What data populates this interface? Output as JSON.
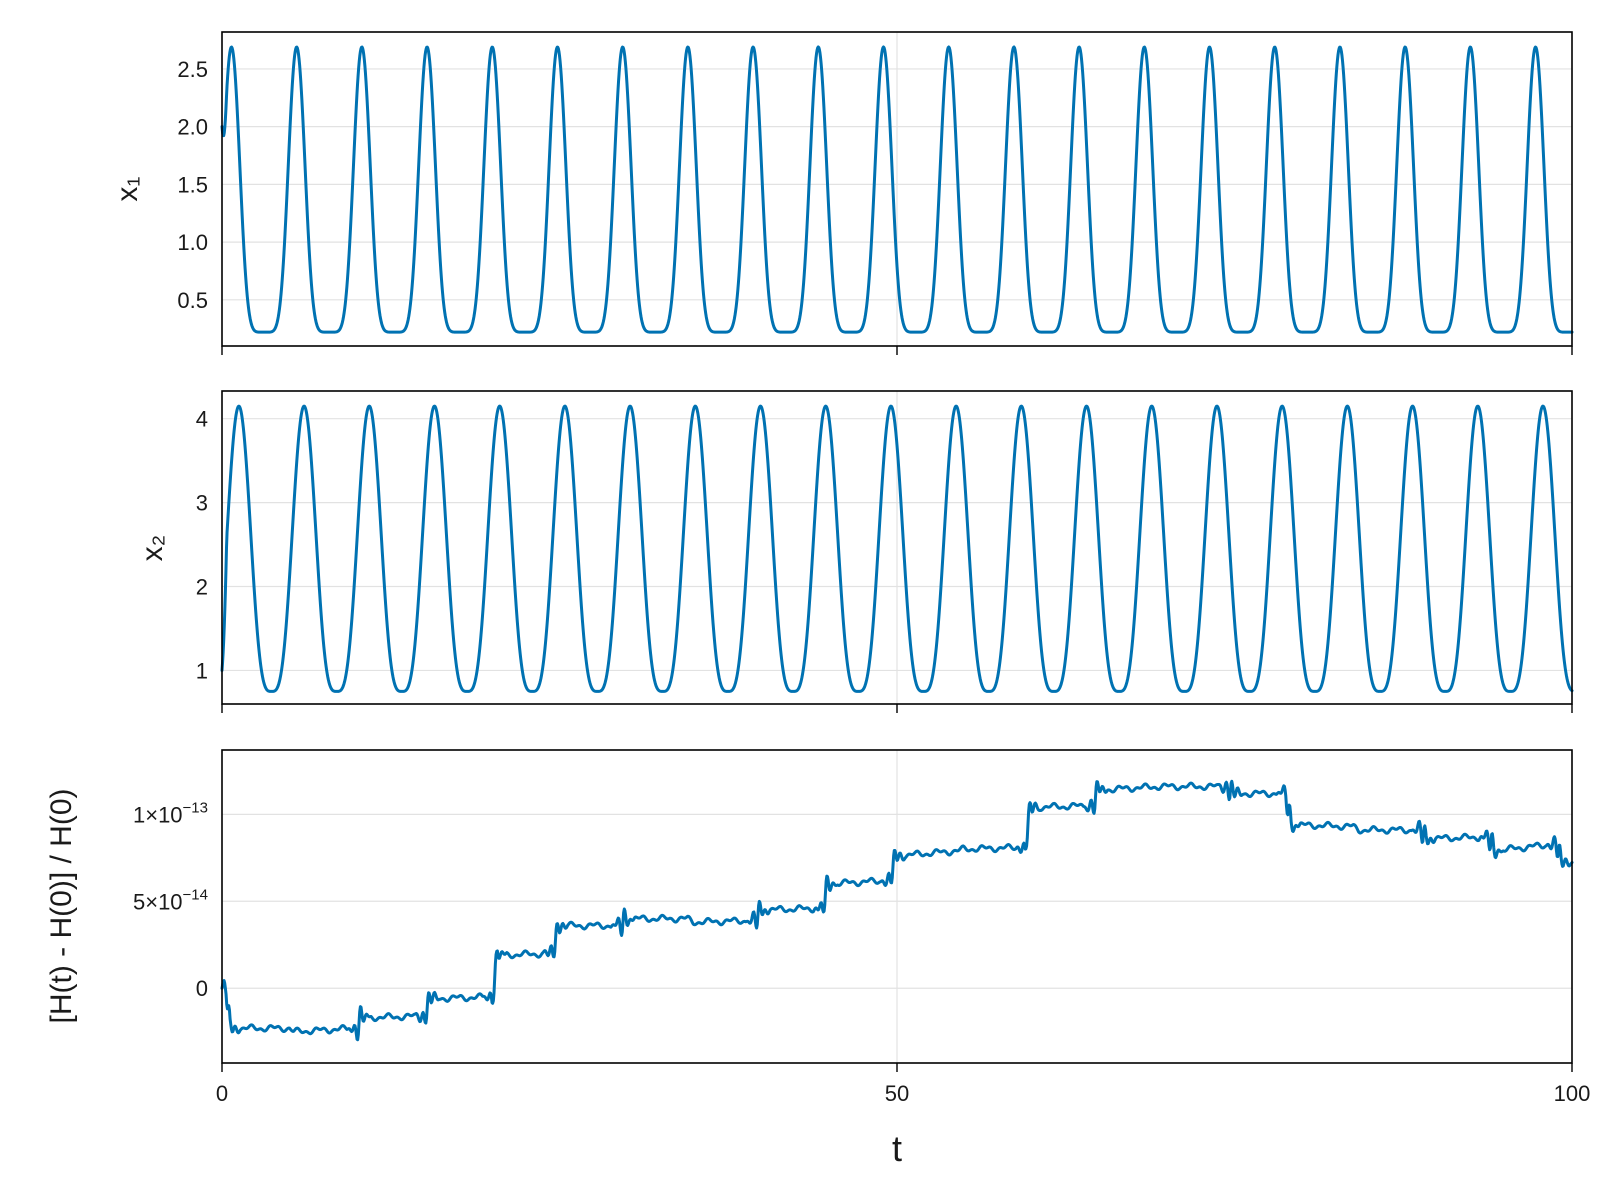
{
  "colors": {
    "series": "#0072b2",
    "grid": "#e2e2e2",
    "frame": "#000000"
  },
  "chart_data": [
    {
      "type": "line",
      "id": "x1",
      "ylabel": "x₁",
      "xlim": [
        0,
        100
      ],
      "ylim": [
        0.1,
        2.82
      ],
      "yticks": [
        {
          "value": 0.5,
          "label": "0.5"
        },
        {
          "value": 1.0,
          "label": "1.0"
        },
        {
          "value": 1.5,
          "label": "1.5"
        },
        {
          "value": 2.0,
          "label": "2.0"
        },
        {
          "value": 2.5,
          "label": "2.5"
        }
      ],
      "xticks": [
        0,
        50,
        100
      ],
      "grid": true,
      "series": [
        {
          "model": "pulse",
          "values": {
            "min": 0.22,
            "max": 2.69,
            "start": 2.0,
            "end": 0.33,
            "period": 4.83,
            "first_peak": 0.7,
            "sharpness": 3.2
          }
        }
      ]
    },
    {
      "type": "line",
      "id": "x2",
      "ylabel": "x₂",
      "xlim": [
        0,
        100
      ],
      "ylim": [
        0.6,
        4.33
      ],
      "yticks": [
        {
          "value": 1,
          "label": "1"
        },
        {
          "value": 2,
          "label": "2"
        },
        {
          "value": 3,
          "label": "3"
        },
        {
          "value": 4,
          "label": "4"
        }
      ],
      "xticks": [
        0,
        50,
        100
      ],
      "grid": true,
      "series": [
        {
          "model": "pulse",
          "values": {
            "min": 0.75,
            "max": 4.15,
            "start": 1.0,
            "end": 1.1,
            "period": 4.83,
            "first_peak": 1.25,
            "sharpness": 1.7
          }
        }
      ]
    },
    {
      "type": "line",
      "id": "energy",
      "ylabel": "[H(t) - H(0)] / H(0)",
      "xlabel": "t",
      "xlim": [
        0,
        100
      ],
      "ylim": [
        -4.3e-14,
        1.37e-13
      ],
      "yticks": [
        {
          "value": 0,
          "label": "0",
          "sup": ""
        },
        {
          "value": 5e-14,
          "label": "5×10",
          "sup": "−14"
        },
        {
          "value": 1e-13,
          "label": "1×10",
          "sup": "−13"
        }
      ],
      "xticks": [
        {
          "value": 0,
          "label": "0"
        },
        {
          "value": 50,
          "label": "50"
        },
        {
          "value": 100,
          "label": "100"
        }
      ],
      "grid": true,
      "series": [
        {
          "model": "steps",
          "values": [
            [
              0,
              0
            ],
            [
              0.3,
              0
            ],
            [
              0.6,
              -2.3e-14
            ],
            [
              5,
              -2.3e-14
            ],
            [
              5.3,
              -2.5e-14
            ],
            [
              10,
              -2.3e-14
            ],
            [
              10.3,
              -1.7e-14
            ],
            [
              15,
              -1.6e-14
            ],
            [
              15.4,
              -6e-15
            ],
            [
              20,
              -5e-15
            ],
            [
              20.4,
              1.9e-14
            ],
            [
              24.5,
              2e-14
            ],
            [
              24.9,
              3.6e-14
            ],
            [
              29.5,
              3.6e-14
            ],
            [
              29.9,
              4e-14
            ],
            [
              34.5,
              4e-14
            ],
            [
              34.9,
              3.8e-14
            ],
            [
              39.5,
              3.9e-14
            ],
            [
              39.9,
              4.5e-14
            ],
            [
              44.5,
              4.6e-14
            ],
            [
              44.9,
              6e-14
            ],
            [
              49.5,
              6.2e-14
            ],
            [
              49.9,
              7.6e-14
            ],
            [
              54.5,
              7.9e-14
            ],
            [
              54.9,
              8e-14
            ],
            [
              59.5,
              8.1e-14
            ],
            [
              59.9,
              1.04e-13
            ],
            [
              64.5,
              1.05e-13
            ],
            [
              64.9,
              1.14e-13
            ],
            [
              69.5,
              1.16e-13
            ],
            [
              69.9,
              1.16e-13
            ],
            [
              74.5,
              1.16e-13
            ],
            [
              74.9,
              1.12e-13
            ],
            [
              78.8,
              1.12e-13
            ],
            [
              79.2,
              9.4e-14
            ],
            [
              83.8,
              9.3e-14
            ],
            [
              84.2,
              9.1e-14
            ],
            [
              88.8,
              9.1e-14
            ],
            [
              89.2,
              8.6e-14
            ],
            [
              93.8,
              8.7e-14
            ],
            [
              94.2,
              7.9e-14
            ],
            [
              98.8,
              8.3e-14
            ],
            [
              99.2,
              7.3e-14
            ],
            [
              100,
              7.3e-14
            ]
          ]
        }
      ]
    }
  ]
}
